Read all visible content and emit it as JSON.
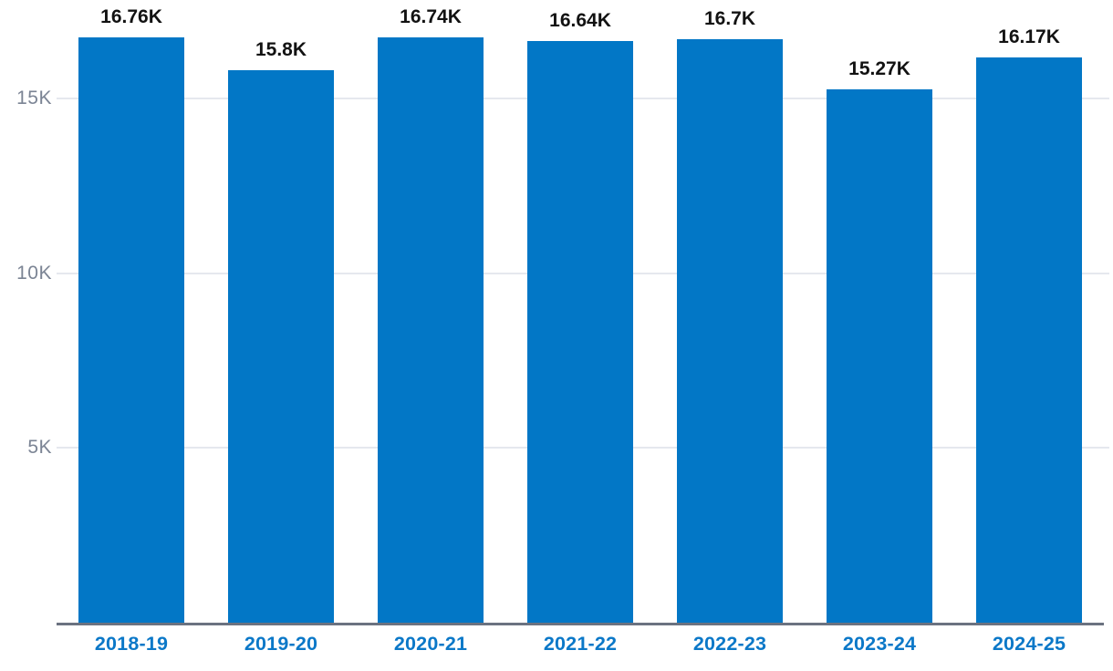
{
  "chart_data": {
    "type": "bar",
    "title": "",
    "xlabel": "",
    "ylabel": "",
    "categories": [
      "2018-19",
      "2019-20",
      "2020-21",
      "2021-22",
      "2022-23",
      "2023-24",
      "2024-25"
    ],
    "values": [
      16760,
      15800,
      16740,
      16640,
      16700,
      15270,
      16170
    ],
    "value_labels": [
      "16.76K",
      "15.8K",
      "16.74K",
      "16.64K",
      "16.7K",
      "15.27K",
      "16.17K"
    ],
    "ylim": [
      0,
      17820
    ],
    "y_ticks": [
      {
        "value": 5000,
        "label": "5K"
      },
      {
        "value": 10000,
        "label": "10K"
      },
      {
        "value": 15000,
        "label": "15K"
      }
    ],
    "grid": "horizontal",
    "legend": "none",
    "colors": {
      "bar": "#0277C6",
      "x_label": "#0B78C8",
      "y_label": "#7B8494",
      "gridline": "#E5E8EE",
      "axis_line": "#6B7280",
      "value_label": "#121212",
      "background": "#FFFFFF"
    }
  }
}
